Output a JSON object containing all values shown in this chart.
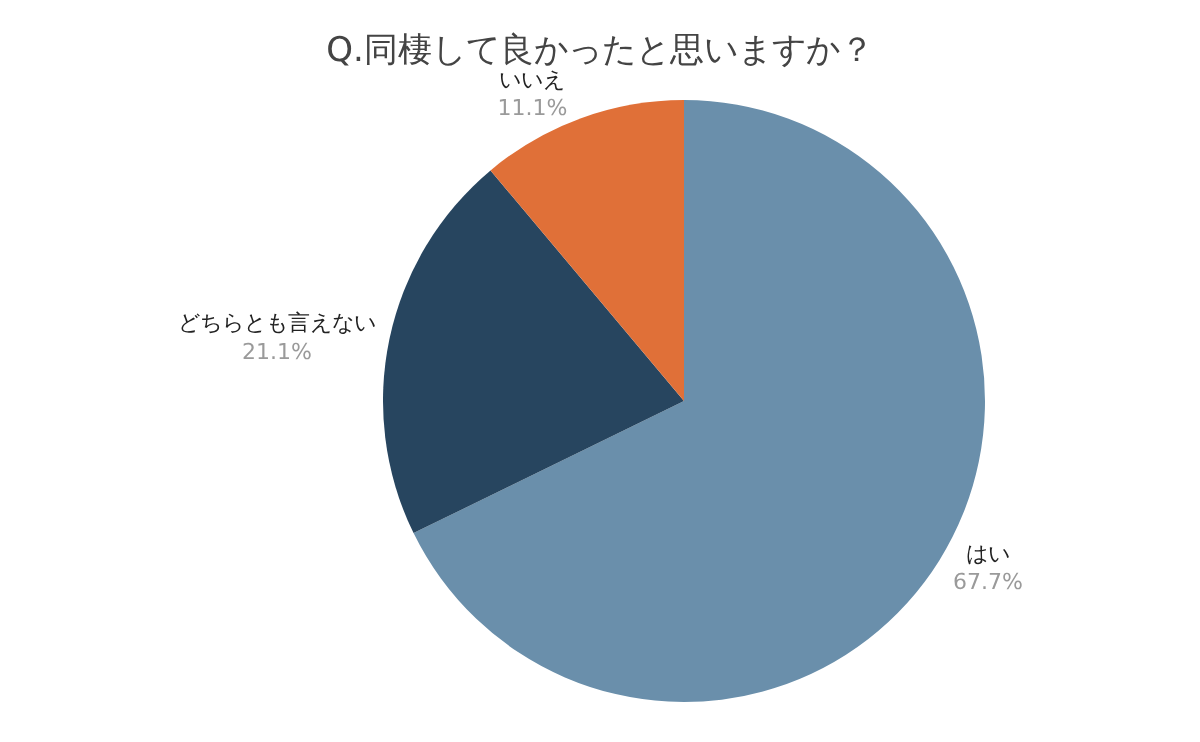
{
  "chart_data": {
    "type": "pie",
    "title": "Q.同棲して良かったと思いますか？",
    "categories": [
      "はい",
      "どちらとも言えない",
      "いいえ"
    ],
    "values": [
      67.7,
      21.1,
      11.1
    ],
    "value_labels": [
      "67.7%",
      "21.1%",
      "11.1%"
    ],
    "colors": [
      "#6a8fab",
      "#27455f",
      "#e07038"
    ],
    "legend": false
  }
}
